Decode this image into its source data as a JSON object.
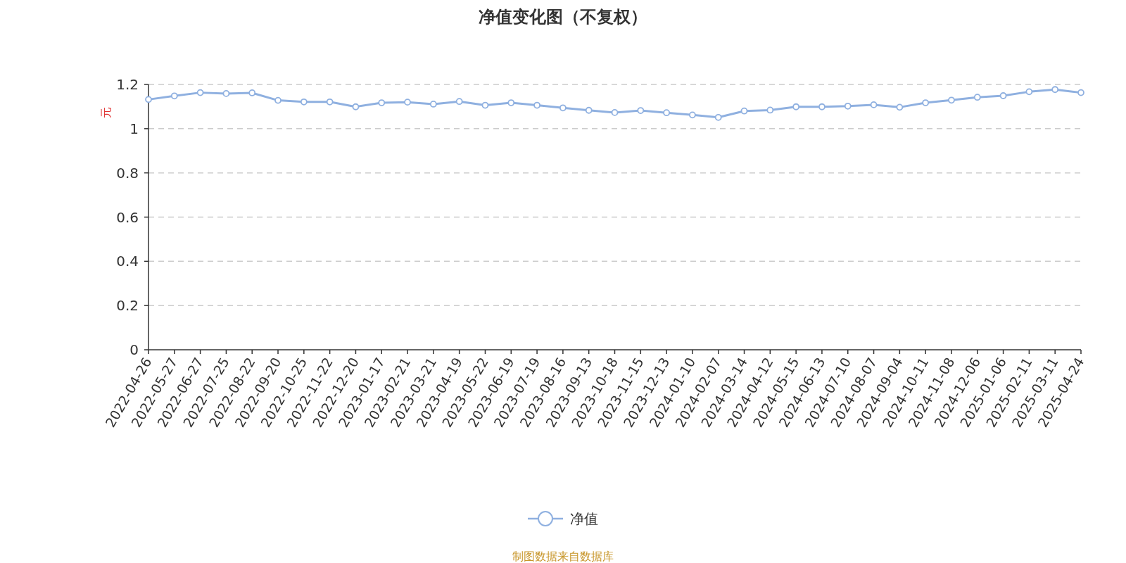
{
  "chart_data": {
    "type": "line",
    "title": "净值变化图（不复权）",
    "ylabel": "元",
    "categories": [
      "2022-04-26",
      "2022-05-27",
      "2022-06-27",
      "2022-07-25",
      "2022-08-22",
      "2022-09-20",
      "2022-10-25",
      "2022-11-22",
      "2022-12-20",
      "2023-01-17",
      "2023-02-21",
      "2023-03-21",
      "2023-04-19",
      "2023-05-22",
      "2023-06-19",
      "2023-07-19",
      "2023-08-16",
      "2023-09-13",
      "2023-10-18",
      "2023-11-15",
      "2023-12-13",
      "2024-01-10",
      "2024-02-07",
      "2024-03-14",
      "2024-04-12",
      "2024-05-15",
      "2024-06-13",
      "2024-07-10",
      "2024-08-07",
      "2024-09-04",
      "2024-10-11",
      "2024-11-08",
      "2024-12-06",
      "2025-01-06",
      "2025-02-11",
      "2025-03-11",
      "2025-04-24"
    ],
    "series": [
      {
        "name": "净值",
        "color": "#8fb0e0",
        "values": [
          1.132,
          1.148,
          1.163,
          1.159,
          1.162,
          1.128,
          1.121,
          1.121,
          1.099,
          1.117,
          1.12,
          1.111,
          1.123,
          1.106,
          1.117,
          1.106,
          1.094,
          1.083,
          1.073,
          1.082,
          1.072,
          1.062,
          1.051,
          1.08,
          1.084,
          1.099,
          1.099,
          1.102,
          1.108,
          1.097,
          1.117,
          1.129,
          1.142,
          1.149,
          1.167,
          1.177,
          1.163
        ]
      }
    ],
    "ylim": [
      0,
      1.2
    ],
    "yticks": [
      0,
      0.2,
      0.4,
      0.6,
      0.8,
      1,
      1.2
    ],
    "grid": "y",
    "legend": "bottom",
    "marker": "circle",
    "line_style": "solid",
    "annotations": [
      "制图数据来自数据库"
    ]
  }
}
